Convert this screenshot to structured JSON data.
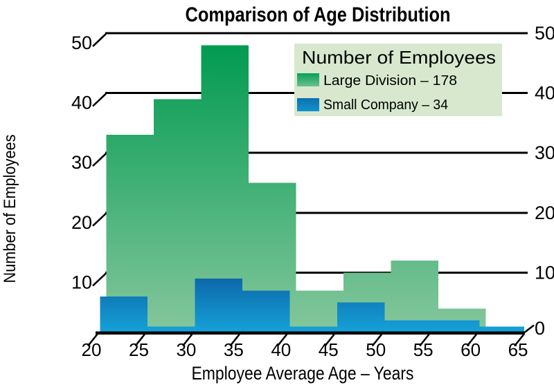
{
  "title": "Comparison of Age Distribution",
  "y_axis": {
    "label": "Number of Employees",
    "ticks": [
      0,
      10,
      20,
      30,
      40,
      50
    ],
    "max": 50
  },
  "x_axis": {
    "label": "Employee Average Age – Years",
    "ticks": [
      20,
      25,
      30,
      35,
      40,
      45,
      50,
      55,
      60,
      65
    ]
  },
  "legend": {
    "title": "Number of Employees",
    "entries": [
      {
        "label": "Large Division – 178"
      },
      {
        "label": "Small Company – 34"
      }
    ]
  },
  "colors": {
    "large_division_top": "#009a4f",
    "large_division_bottom": "#86c79d",
    "small_company_top": "#0d65a7",
    "small_company_bottom": "#15a3d9",
    "legend_background": "#d7e8ce",
    "axis": "#000000"
  },
  "chart_data": {
    "type": "bar",
    "subtype": "histogram",
    "title": "Comparison of Age Distribution",
    "xlabel": "Employee Average Age – Years",
    "ylabel": "Number of Employees",
    "bin_edges": [
      21,
      26,
      31,
      36,
      41,
      46,
      51,
      56,
      61,
      66
    ],
    "categories": [
      "21–26",
      "26–31",
      "31–36",
      "36–41",
      "41–46",
      "46–51",
      "51–56",
      "56–61",
      "61–66"
    ],
    "series": [
      {
        "name": "Large Division",
        "total": 178,
        "values": [
          33,
          39,
          48,
          25,
          7,
          10,
          12,
          4,
          0
        ]
      },
      {
        "name": "Small Company",
        "total": 34,
        "values": [
          6,
          1,
          9,
          7,
          1,
          5,
          2,
          2,
          1
        ]
      }
    ],
    "ylim": [
      0,
      50
    ],
    "xlim": [
      20,
      66
    ],
    "grid": "horizontal",
    "gridline_values": [
      10,
      20,
      30,
      40,
      50
    ],
    "legend_position": "top-right"
  }
}
